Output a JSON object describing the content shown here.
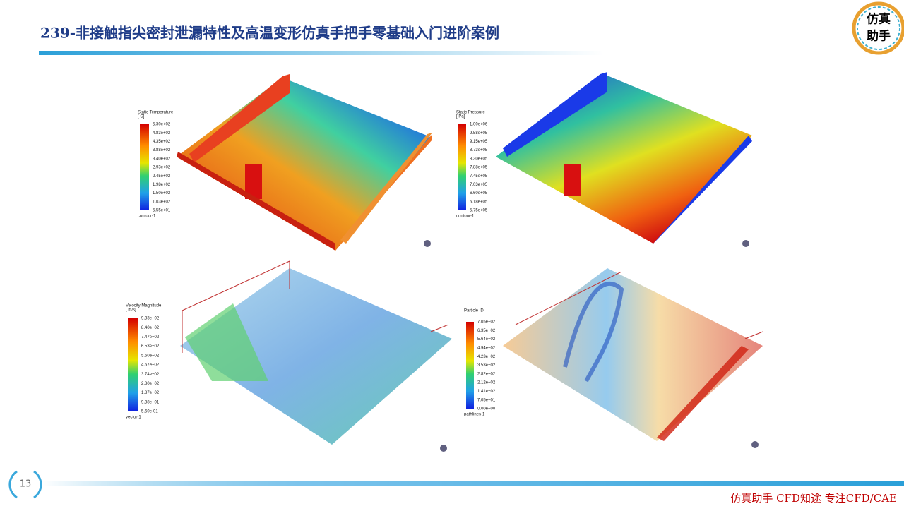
{
  "header": {
    "title": "239-非接触指尖密封泄漏特性及高温变形仿真手把手零基础入门进阶案例"
  },
  "logo": {
    "lines": [
      "仿真",
      "助手"
    ]
  },
  "panels": [
    {
      "legend_title": "Static Temperature",
      "unit": "[ C]",
      "labels": [
        "5.30e+02",
        "4.83e+02",
        "4.35e+02",
        "3.88e+02",
        "3.40e+02",
        "2.93e+02",
        "2.45e+02",
        "1.98e+02",
        "1.50e+02",
        "1.03e+02",
        "5.55e+01"
      ],
      "object": "contour-1"
    },
    {
      "legend_title": "Static Pressure",
      "unit": "[ Pa]",
      "labels": [
        "1.00e+06",
        "9.58e+05",
        "9.15e+05",
        "8.73e+05",
        "8.30e+05",
        "7.88e+05",
        "7.45e+05",
        "7.03e+05",
        "6.60e+05",
        "6.18e+05",
        "5.75e+05"
      ],
      "object": "contour-1"
    },
    {
      "legend_title": "Velocity Magnitude",
      "unit": "[ m/s]",
      "labels": [
        "9.33e+02",
        "8.40e+02",
        "7.47e+02",
        "6.53e+02",
        "5.60e+02",
        "4.67e+02",
        "3.74e+02",
        "2.80e+02",
        "1.87e+02",
        "9.38e+01",
        "5.60e-01"
      ],
      "object": "vector-1"
    },
    {
      "legend_title": "Particle ID",
      "labels": [
        "7.05e+02",
        "6.35e+02",
        "5.64e+02",
        "4.94e+02",
        "4.23e+02",
        "3.53e+02",
        "2.82e+02",
        "2.12e+02",
        "1.41e+02",
        "7.05e+01",
        "0.00e+00"
      ],
      "object": "pathlines-1"
    }
  ],
  "page_number": "13",
  "footer": {
    "text": "仿真助手 CFD知途 专注CFD/CAE"
  }
}
